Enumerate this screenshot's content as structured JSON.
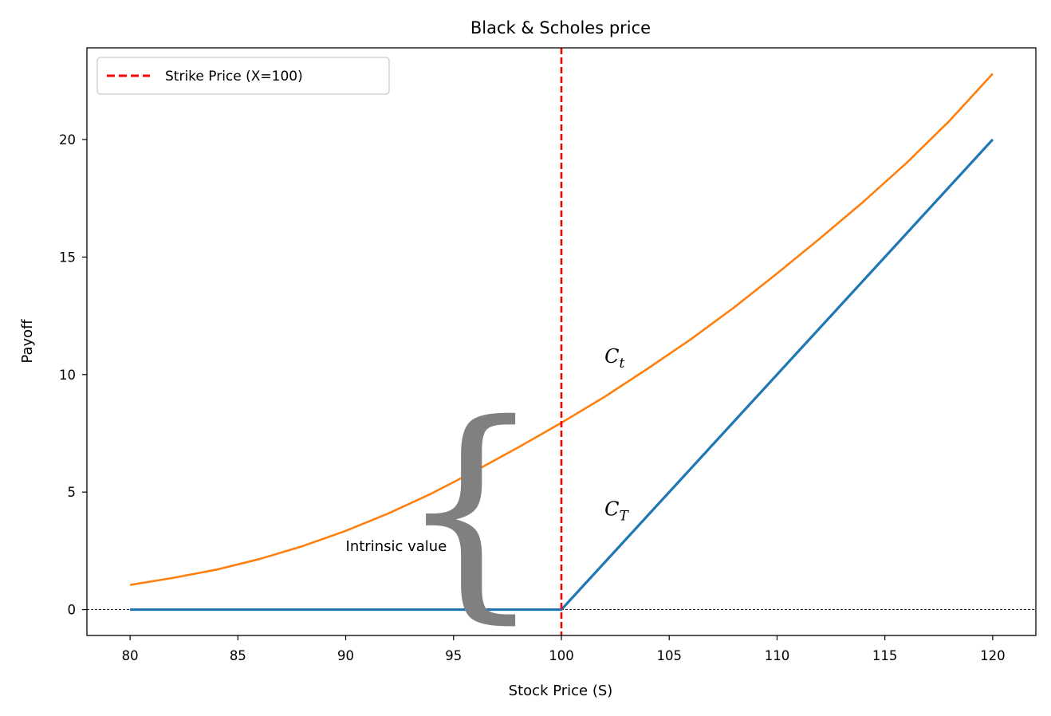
{
  "chart_data": {
    "type": "line",
    "title": "Black & Scholes price",
    "xlabel": "Stock Price (S)",
    "ylabel": "Payoff",
    "xlim": [
      78,
      122
    ],
    "ylim": [
      -1.1,
      23.9
    ],
    "xticks": [
      80,
      85,
      90,
      95,
      100,
      105,
      110,
      115,
      120
    ],
    "yticks": [
      0,
      5,
      10,
      15,
      20
    ],
    "grid": false,
    "legend_placement": "top-left",
    "legend_entries": [
      "Strike Price (X=100)"
    ],
    "strike_price": 100,
    "series": [
      {
        "color": "#1f77b4",
        "x": [
          80,
          99.6,
          100,
          120
        ],
        "y": [
          0,
          0,
          0,
          20
        ]
      },
      {
        "color": "#ff7f0e",
        "x": [
          80,
          82,
          84,
          86,
          88,
          90,
          92,
          94,
          96,
          98,
          100,
          102,
          104,
          106,
          108,
          110,
          112,
          114,
          116,
          118,
          120
        ],
        "y": [
          1.05,
          1.35,
          1.7,
          2.15,
          2.7,
          3.35,
          4.1,
          4.95,
          5.9,
          6.9,
          7.95,
          9.05,
          10.25,
          11.5,
          12.85,
          14.3,
          15.8,
          17.35,
          19.0,
          20.8,
          22.8
        ]
      }
    ],
    "reference_lines": [
      {
        "orientation": "vertical",
        "value": 100,
        "color": "#ff0000",
        "style": "dashed"
      },
      {
        "orientation": "horizontal",
        "value": 0,
        "color": "#000000",
        "style": "dashed"
      }
    ],
    "annotations": {
      "ct_label": {
        "main": "C",
        "sub": "t",
        "x": 102,
        "y": 10.5
      },
      "cT_label": {
        "main": "C",
        "sub": "T",
        "x": 102,
        "y": 4.0
      },
      "intrinsic_label": {
        "text": "Intrinsic value",
        "x": 90,
        "y": 2.5
      },
      "brace_glyph": "{"
    }
  }
}
